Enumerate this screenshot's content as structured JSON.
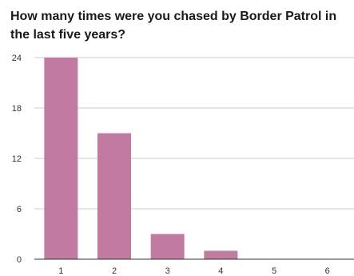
{
  "chart_data": {
    "type": "bar",
    "title": "How many times were you chased by Border Patrol in the last five years?",
    "categories": [
      "1",
      "2",
      "3",
      "4",
      "5",
      "6"
    ],
    "values": [
      24,
      15,
      3,
      1,
      0,
      0
    ],
    "ylim": [
      0,
      24
    ],
    "yticks": [
      0,
      6,
      12,
      18,
      24
    ],
    "xlabel": "",
    "ylabel": "",
    "grid": true,
    "bar_color": "#c27ba0",
    "grid_color": "#cccccc",
    "axis_color": "#333333"
  }
}
